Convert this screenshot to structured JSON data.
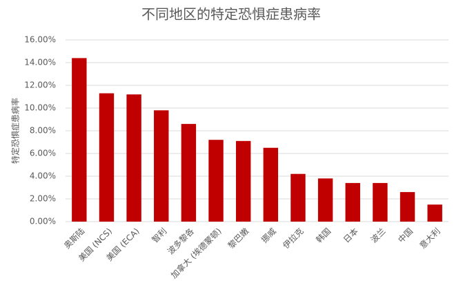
{
  "chart_data": {
    "type": "bar",
    "title": "不同地区的特定恐惧症患病率",
    "y_label": "特定恐惧症患病率",
    "categories": [
      "奥斯陆",
      "美国 (NCS)",
      "美国 (ECA)",
      "智利",
      "波多黎各",
      "加拿大 (埃德蒙顿)",
      "黎巴嫩",
      "挪威",
      "伊拉克",
      "韩国",
      "日本",
      "波兰",
      "中国",
      "意大利"
    ],
    "values": [
      14.4,
      11.3,
      11.2,
      9.8,
      8.6,
      7.2,
      7.1,
      6.5,
      4.2,
      3.8,
      3.4,
      3.4,
      2.6,
      1.5
    ],
    "color": "#c00000",
    "ylim": [
      0,
      16
    ],
    "yticks": [
      {
        "value": 0,
        "label": "0.00%"
      },
      {
        "value": 2,
        "label": "2.00%"
      },
      {
        "value": 4,
        "label": "4.00%"
      },
      {
        "value": 6,
        "label": "6.00%"
      },
      {
        "value": 8,
        "label": "8.00%"
      },
      {
        "value": 10,
        "label": "10.00%"
      },
      {
        "value": 12,
        "label": "12.00%"
      },
      {
        "value": 14,
        "label": "14.00%"
      },
      {
        "value": 16,
        "label": "16.00%"
      }
    ],
    "grid": true
  }
}
